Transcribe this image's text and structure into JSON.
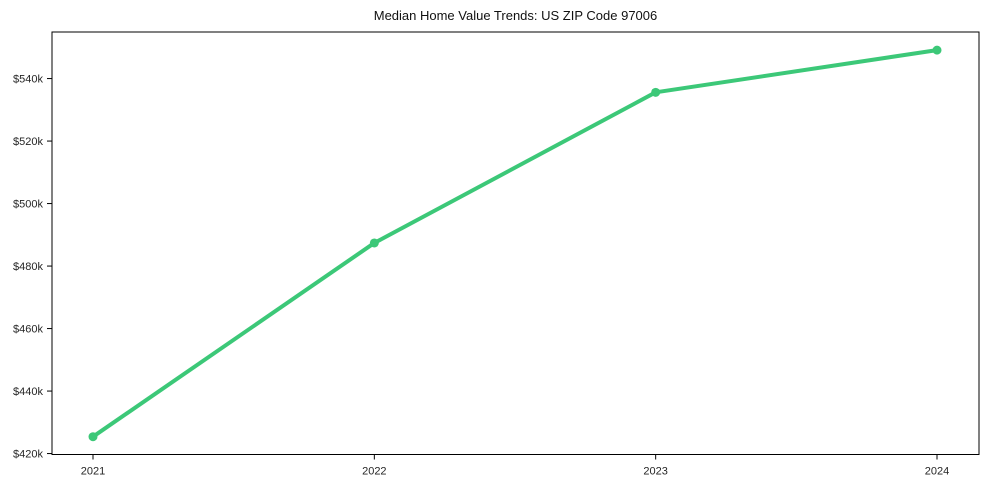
{
  "page": {
    "background": "#ffffff"
  },
  "chart_data": {
    "type": "line",
    "title": "Median Home Value Trends: US ZIP Code 97006",
    "x": [
      "2021",
      "2022",
      "2023",
      "2024"
    ],
    "x_tick_labels": [
      "2021",
      "2022",
      "2023",
      "2024"
    ],
    "values": [
      425400,
      487400,
      535600,
      549100
    ],
    "y_ticks": [
      420000,
      440000,
      460000,
      480000,
      500000,
      520000,
      540000
    ],
    "y_tick_labels": [
      "$420k",
      "$440k",
      "$460k",
      "$480k",
      "$500k",
      "$520k",
      "$540k"
    ],
    "ylim": [
      419700,
      554900
    ],
    "xlabel": "",
    "ylabel": "",
    "grid": false,
    "legend": "none",
    "marker": "circle",
    "line_color": "#3cc878",
    "marker_color": "#3cc878",
    "axis_color": "#000000"
  }
}
